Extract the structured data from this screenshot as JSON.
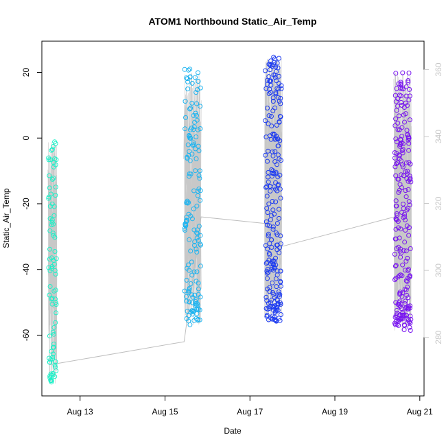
{
  "chart_data": {
    "type": "scatter",
    "title": "ATOM1 Northbound Static_Air_Temp",
    "xlabel": "Date",
    "ylabel": "Static_Air_Temp",
    "xlim": [
      12.1,
      21.1
    ],
    "ylim": [
      -78.5,
      29.5
    ],
    "y2lim": [
      262.5,
      368.5
    ],
    "x_ticks": [
      {
        "value": 13,
        "label": "Aug 13"
      },
      {
        "value": 15,
        "label": "Aug 15"
      },
      {
        "value": 17,
        "label": "Aug 17"
      },
      {
        "value": 19,
        "label": "Aug 19"
      },
      {
        "value": 21,
        "label": "Aug 21"
      }
    ],
    "y_ticks": [
      -60,
      -40,
      -20,
      0,
      20
    ],
    "y2_ticks": [
      280,
      300,
      320,
      340,
      360
    ],
    "colors": {
      "flight1": "#1ef0c8",
      "flight2": "#1eb4f0",
      "flight3": "#1e3cf0",
      "flight4": "#7814f0",
      "connector": "#bebebe",
      "right_axis": "#c8c8c8"
    },
    "flights": [
      {
        "name": "flight1",
        "x_range": [
          12.25,
          12.45
        ],
        "y_range": [
          -75,
          -1
        ],
        "n_points": 90,
        "color": "#1ef0c8"
      },
      {
        "name": "flight2",
        "x_range": [
          15.45,
          15.85
        ],
        "y_range": [
          -57,
          22
        ],
        "n_points": 160,
        "color": "#1eb4f0"
      },
      {
        "name": "flight3",
        "x_range": [
          17.35,
          17.75
        ],
        "y_range": [
          -56,
          25
        ],
        "n_points": 230,
        "color": "#1e3cf0"
      },
      {
        "name": "flight4",
        "x_range": [
          20.4,
          20.8
        ],
        "y_range": [
          -59,
          20
        ],
        "n_points": 230,
        "color": "#7814f0"
      }
    ],
    "connector_path": [
      {
        "x": 12.3,
        "y": -69
      },
      {
        "x": 15.45,
        "y": -62
      },
      {
        "x": 15.85,
        "y": -24
      },
      {
        "x": 17.35,
        "y": -26
      },
      {
        "x": 17.75,
        "y": -33
      },
      {
        "x": 20.4,
        "y": -24
      }
    ]
  }
}
